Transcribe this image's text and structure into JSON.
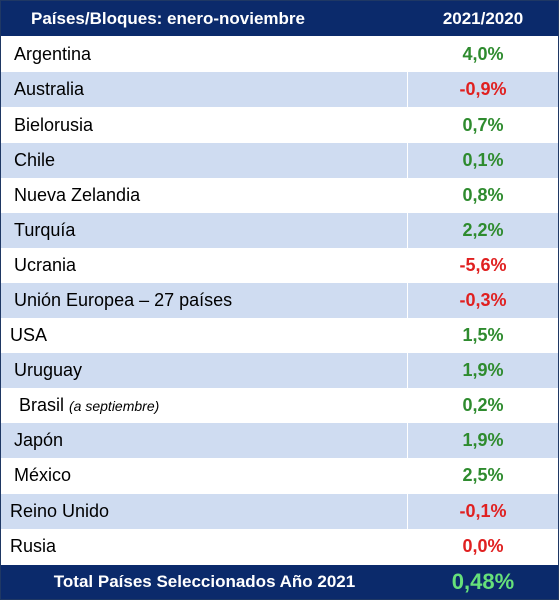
{
  "header": {
    "col_country": "Países/Bloques: enero-noviembre",
    "col_change": "2021/2020"
  },
  "rows": [
    {
      "name": "Argentina",
      "note": "",
      "value": "4,0%",
      "sign": "pos",
      "indent": 1
    },
    {
      "name": "Australia",
      "note": "",
      "value": "-0,9%",
      "sign": "neg",
      "indent": 1
    },
    {
      "name": "Bielorusia",
      "note": "",
      "value": "0,7%",
      "sign": "pos",
      "indent": 1
    },
    {
      "name": "Chile",
      "note": "",
      "value": "0,1%",
      "sign": "pos",
      "indent": 1
    },
    {
      "name": "Nueva Zelandia",
      "note": "",
      "value": "0,8%",
      "sign": "pos",
      "indent": 1
    },
    {
      "name": "Turquía",
      "note": "",
      "value": "2,2%",
      "sign": "pos",
      "indent": 1
    },
    {
      "name": "Ucrania",
      "note": "",
      "value": "-5,6%",
      "sign": "neg",
      "indent": 1
    },
    {
      "name": "Unión Europea – 27 países",
      "note": "",
      "value": "-0,3%",
      "sign": "neg",
      "indent": 1
    },
    {
      "name": "USA",
      "note": "",
      "value": "1,5%",
      "sign": "pos",
      "indent": 0
    },
    {
      "name": "Uruguay",
      "note": "",
      "value": "1,9%",
      "sign": "pos",
      "indent": 1
    },
    {
      "name": "Brasil",
      "note": "(a septiembre)",
      "value": "0,2%",
      "sign": "pos",
      "indent": 2
    },
    {
      "name": "Japón",
      "note": "",
      "value": "1,9%",
      "sign": "pos",
      "indent": 1
    },
    {
      "name": "México",
      "note": "",
      "value": "2,5%",
      "sign": "pos",
      "indent": 1
    },
    {
      "name": "Reino Unido",
      "note": "",
      "value": "-0,1%",
      "sign": "neg",
      "indent": 0
    },
    {
      "name": "Rusia",
      "note": "",
      "value": "0,0%",
      "sign": "neg",
      "indent": 0
    }
  ],
  "footer": {
    "label": "Total Países Seleccionados Año 2021",
    "value": "0,48%"
  },
  "colors": {
    "header_bg": "#0b2a6b",
    "row_alt_bg": "#cfdcf1",
    "positive": "#2e8b2e",
    "negative": "#e02020",
    "total_value": "#66e07a"
  }
}
